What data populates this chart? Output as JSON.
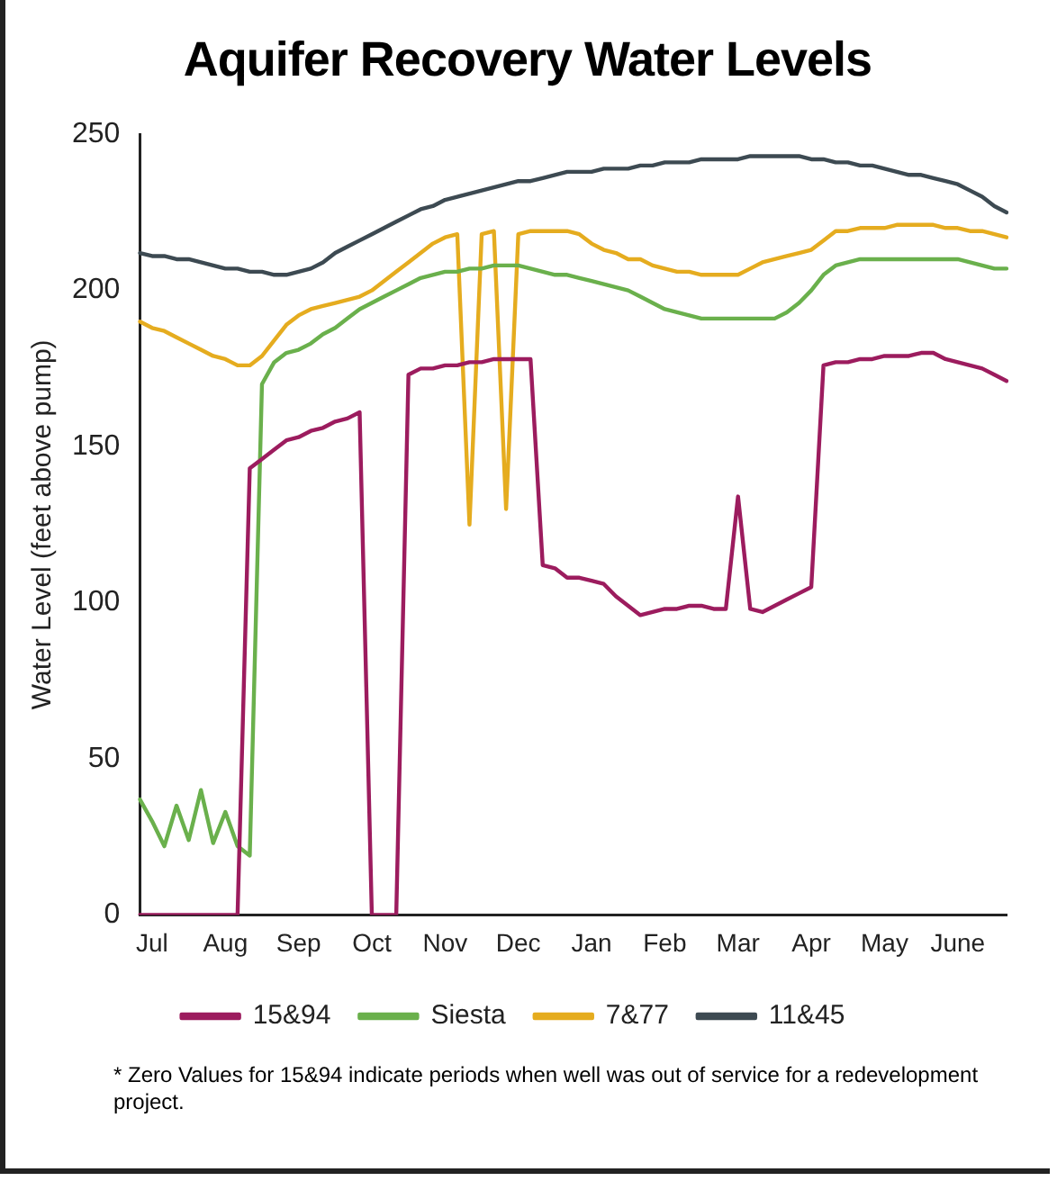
{
  "chart_data": {
    "type": "line",
    "title": "Aquifer Recovery Water Levels",
    "ylabel": "Water Level (feet above pump)",
    "categories": [
      null,
      "Jul",
      null,
      null,
      null,
      null,
      null,
      "Aug",
      null,
      null,
      null,
      null,
      null,
      "Sep",
      null,
      null,
      null,
      null,
      null,
      "Oct",
      null,
      null,
      null,
      null,
      null,
      "Nov",
      null,
      null,
      null,
      null,
      null,
      "Dec",
      null,
      null,
      null,
      null,
      null,
      "Jan",
      null,
      null,
      null,
      null,
      null,
      "Feb",
      null,
      null,
      null,
      null,
      null,
      "Mar",
      null,
      null,
      null,
      null,
      null,
      "Apr",
      null,
      null,
      null,
      null,
      null,
      "May",
      null,
      null,
      null,
      null,
      null,
      "June",
      null,
      null,
      null,
      null
    ],
    "ylim": [
      0,
      250
    ],
    "yticks": [
      0,
      50,
      100,
      150,
      200,
      250
    ],
    "grid": false,
    "legend": "bottom",
    "marker": "none",
    "line_style": "solid",
    "annotations": [
      "* Zero Values for 15&94 indicate periods when well was out of service for a redevelopment project."
    ],
    "series": [
      {
        "name": "15&94",
        "color": "#9c1c5e",
        "values": [
          0,
          0,
          0,
          0,
          0,
          0,
          0,
          0,
          0,
          143,
          146,
          149,
          152,
          153,
          155,
          156,
          158,
          159,
          161,
          0,
          0,
          0,
          173,
          175,
          175,
          176,
          176,
          177,
          177,
          178,
          178,
          178,
          178,
          112,
          111,
          108,
          108,
          107,
          106,
          102,
          99,
          96,
          97,
          98,
          98,
          99,
          99,
          98,
          98,
          134,
          98,
          97,
          99,
          101,
          103,
          105,
          176,
          177,
          177,
          178,
          178,
          179,
          179,
          179,
          180,
          180,
          178,
          177,
          176,
          175,
          173,
          171
        ]
      },
      {
        "name": "Siesta",
        "color": "#6ab04c",
        "values": [
          37,
          30,
          22,
          35,
          24,
          40,
          23,
          33,
          22,
          19,
          170,
          177,
          180,
          181,
          183,
          186,
          188,
          191,
          194,
          196,
          198,
          200,
          202,
          204,
          205,
          206,
          206,
          207,
          207,
          208,
          208,
          208,
          207,
          206,
          205,
          205,
          204,
          203,
          202,
          201,
          200,
          198,
          196,
          194,
          193,
          192,
          191,
          191,
          191,
          191,
          191,
          191,
          191,
          193,
          196,
          200,
          205,
          208,
          209,
          210,
          210,
          210,
          210,
          210,
          210,
          210,
          210,
          210,
          209,
          208,
          207,
          207
        ]
      },
      {
        "name": "7&77",
        "color": "#e5ac1f",
        "values": [
          190,
          188,
          187,
          185,
          183,
          181,
          179,
          178,
          176,
          176,
          179,
          184,
          189,
          192,
          194,
          195,
          196,
          197,
          198,
          200,
          203,
          206,
          209,
          212,
          215,
          217,
          218,
          125,
          218,
          219,
          130,
          218,
          219,
          219,
          219,
          219,
          218,
          215,
          213,
          212,
          210,
          210,
          208,
          207,
          206,
          206,
          205,
          205,
          205,
          205,
          207,
          209,
          210,
          211,
          212,
          213,
          216,
          219,
          219,
          220,
          220,
          220,
          221,
          221,
          221,
          221,
          220,
          220,
          219,
          219,
          218,
          217
        ]
      },
      {
        "name": "11&45",
        "color": "#3d4a52",
        "values": [
          212,
          211,
          211,
          210,
          210,
          209,
          208,
          207,
          207,
          206,
          206,
          205,
          205,
          206,
          207,
          209,
          212,
          214,
          216,
          218,
          220,
          222,
          224,
          226,
          227,
          229,
          230,
          231,
          232,
          233,
          234,
          235,
          235,
          236,
          237,
          238,
          238,
          238,
          239,
          239,
          239,
          240,
          240,
          241,
          241,
          241,
          242,
          242,
          242,
          242,
          243,
          243,
          243,
          243,
          243,
          242,
          242,
          241,
          241,
          240,
          240,
          239,
          238,
          237,
          237,
          236,
          235,
          234,
          232,
          230,
          227,
          225
        ]
      }
    ]
  }
}
